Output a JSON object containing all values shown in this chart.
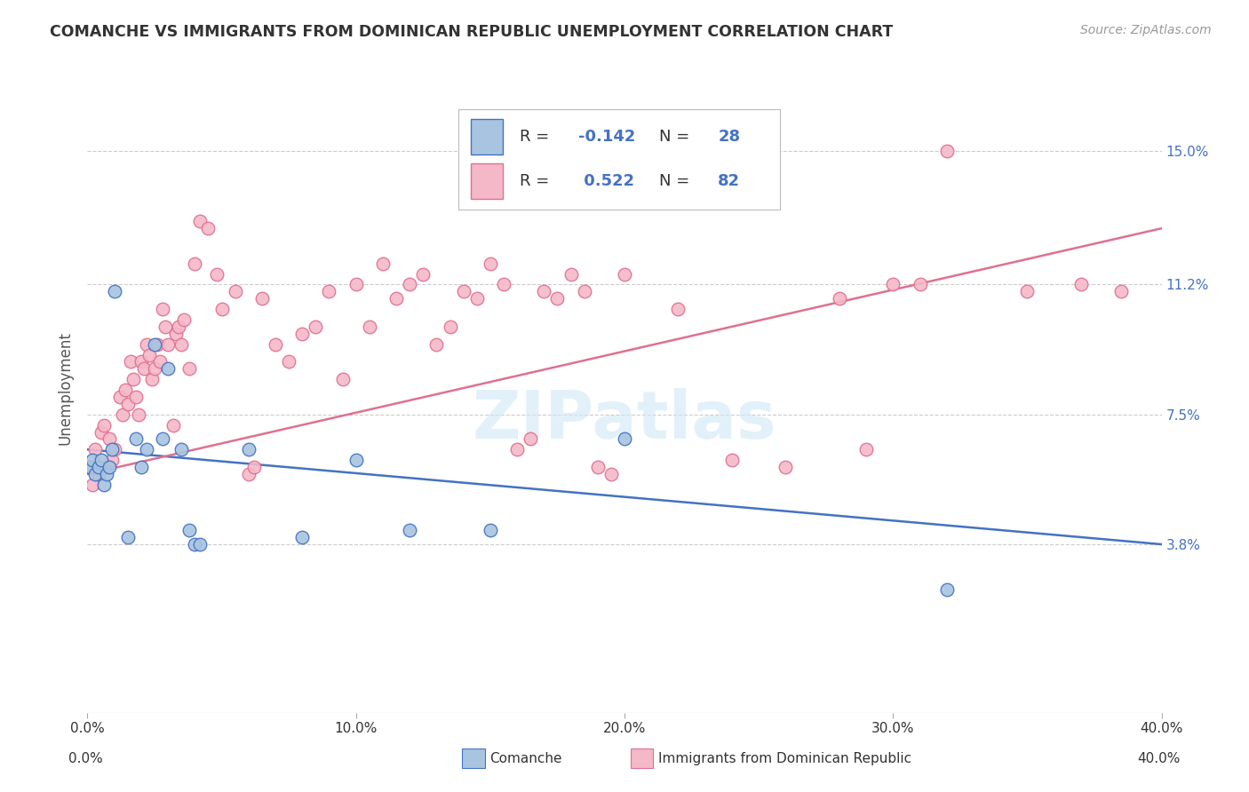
{
  "title": "COMANCHE VS IMMIGRANTS FROM DOMINICAN REPUBLIC UNEMPLOYMENT CORRELATION CHART",
  "source": "Source: ZipAtlas.com",
  "ylabel": "Unemployment",
  "ytick_labels": [
    "3.8%",
    "7.5%",
    "11.2%",
    "15.0%"
  ],
  "ytick_values": [
    0.038,
    0.075,
    0.112,
    0.15
  ],
  "xtick_labels": [
    "0.0%",
    "10.0%",
    "20.0%",
    "30.0%",
    "40.0%"
  ],
  "xtick_values": [
    0.0,
    0.1,
    0.2,
    0.3,
    0.4
  ],
  "xlim": [
    0.0,
    0.4
  ],
  "ylim": [
    -0.01,
    0.175
  ],
  "comanche_color": "#a8c4e0",
  "dominican_color": "#f4b8c8",
  "line_blue": "#4472c4",
  "line_pink": "#e07090",
  "watermark": "ZIPatlas",
  "legend_r1_black": "R = ",
  "legend_r1_val": "-0.142",
  "legend_r1_n": "  N = ",
  "legend_r1_nval": "28",
  "legend_r2_black": "R = ",
  "legend_r2_val": " 0.522",
  "legend_r2_n": "  N = ",
  "legend_r2_nval": "82",
  "comanche_points": [
    [
      0.001,
      0.06
    ],
    [
      0.002,
      0.062
    ],
    [
      0.003,
      0.058
    ],
    [
      0.004,
      0.06
    ],
    [
      0.005,
      0.062
    ],
    [
      0.006,
      0.055
    ],
    [
      0.007,
      0.058
    ],
    [
      0.008,
      0.06
    ],
    [
      0.009,
      0.065
    ],
    [
      0.01,
      0.11
    ],
    [
      0.015,
      0.04
    ],
    [
      0.018,
      0.068
    ],
    [
      0.02,
      0.06
    ],
    [
      0.022,
      0.065
    ],
    [
      0.025,
      0.095
    ],
    [
      0.028,
      0.068
    ],
    [
      0.03,
      0.088
    ],
    [
      0.035,
      0.065
    ],
    [
      0.038,
      0.042
    ],
    [
      0.04,
      0.038
    ],
    [
      0.042,
      0.038
    ],
    [
      0.06,
      0.065
    ],
    [
      0.08,
      0.04
    ],
    [
      0.1,
      0.062
    ],
    [
      0.12,
      0.042
    ],
    [
      0.15,
      0.042
    ],
    [
      0.2,
      0.068
    ],
    [
      0.32,
      0.025
    ]
  ],
  "dominican_points": [
    [
      0.001,
      0.06
    ],
    [
      0.002,
      0.055
    ],
    [
      0.003,
      0.065
    ],
    [
      0.004,
      0.058
    ],
    [
      0.005,
      0.07
    ],
    [
      0.006,
      0.072
    ],
    [
      0.007,
      0.06
    ],
    [
      0.008,
      0.068
    ],
    [
      0.009,
      0.062
    ],
    [
      0.01,
      0.065
    ],
    [
      0.012,
      0.08
    ],
    [
      0.013,
      0.075
    ],
    [
      0.014,
      0.082
    ],
    [
      0.015,
      0.078
    ],
    [
      0.016,
      0.09
    ],
    [
      0.017,
      0.085
    ],
    [
      0.018,
      0.08
    ],
    [
      0.019,
      0.075
    ],
    [
      0.02,
      0.09
    ],
    [
      0.021,
      0.088
    ],
    [
      0.022,
      0.095
    ],
    [
      0.023,
      0.092
    ],
    [
      0.024,
      0.085
    ],
    [
      0.025,
      0.088
    ],
    [
      0.026,
      0.095
    ],
    [
      0.027,
      0.09
    ],
    [
      0.028,
      0.105
    ],
    [
      0.029,
      0.1
    ],
    [
      0.03,
      0.095
    ],
    [
      0.032,
      0.072
    ],
    [
      0.033,
      0.098
    ],
    [
      0.034,
      0.1
    ],
    [
      0.035,
      0.095
    ],
    [
      0.036,
      0.102
    ],
    [
      0.038,
      0.088
    ],
    [
      0.04,
      0.118
    ],
    [
      0.042,
      0.13
    ],
    [
      0.045,
      0.128
    ],
    [
      0.048,
      0.115
    ],
    [
      0.05,
      0.105
    ],
    [
      0.055,
      0.11
    ],
    [
      0.06,
      0.058
    ],
    [
      0.062,
      0.06
    ],
    [
      0.065,
      0.108
    ],
    [
      0.07,
      0.095
    ],
    [
      0.075,
      0.09
    ],
    [
      0.08,
      0.098
    ],
    [
      0.085,
      0.1
    ],
    [
      0.09,
      0.11
    ],
    [
      0.095,
      0.085
    ],
    [
      0.1,
      0.112
    ],
    [
      0.105,
      0.1
    ],
    [
      0.11,
      0.118
    ],
    [
      0.115,
      0.108
    ],
    [
      0.12,
      0.112
    ],
    [
      0.125,
      0.115
    ],
    [
      0.13,
      0.095
    ],
    [
      0.135,
      0.1
    ],
    [
      0.14,
      0.11
    ],
    [
      0.145,
      0.108
    ],
    [
      0.15,
      0.118
    ],
    [
      0.155,
      0.112
    ],
    [
      0.16,
      0.065
    ],
    [
      0.165,
      0.068
    ],
    [
      0.17,
      0.11
    ],
    [
      0.175,
      0.108
    ],
    [
      0.18,
      0.115
    ],
    [
      0.185,
      0.11
    ],
    [
      0.19,
      0.06
    ],
    [
      0.195,
      0.058
    ],
    [
      0.2,
      0.115
    ],
    [
      0.22,
      0.105
    ],
    [
      0.24,
      0.062
    ],
    [
      0.26,
      0.06
    ],
    [
      0.28,
      0.108
    ],
    [
      0.29,
      0.065
    ],
    [
      0.3,
      0.112
    ],
    [
      0.31,
      0.112
    ],
    [
      0.32,
      0.15
    ],
    [
      0.35,
      0.11
    ],
    [
      0.37,
      0.112
    ],
    [
      0.385,
      0.11
    ]
  ],
  "blue_line": {
    "x0": 0.0,
    "y0": 0.065,
    "x1": 0.4,
    "y1": 0.038
  },
  "pink_line": {
    "x0": 0.0,
    "y0": 0.058,
    "x1": 0.4,
    "y1": 0.128
  }
}
